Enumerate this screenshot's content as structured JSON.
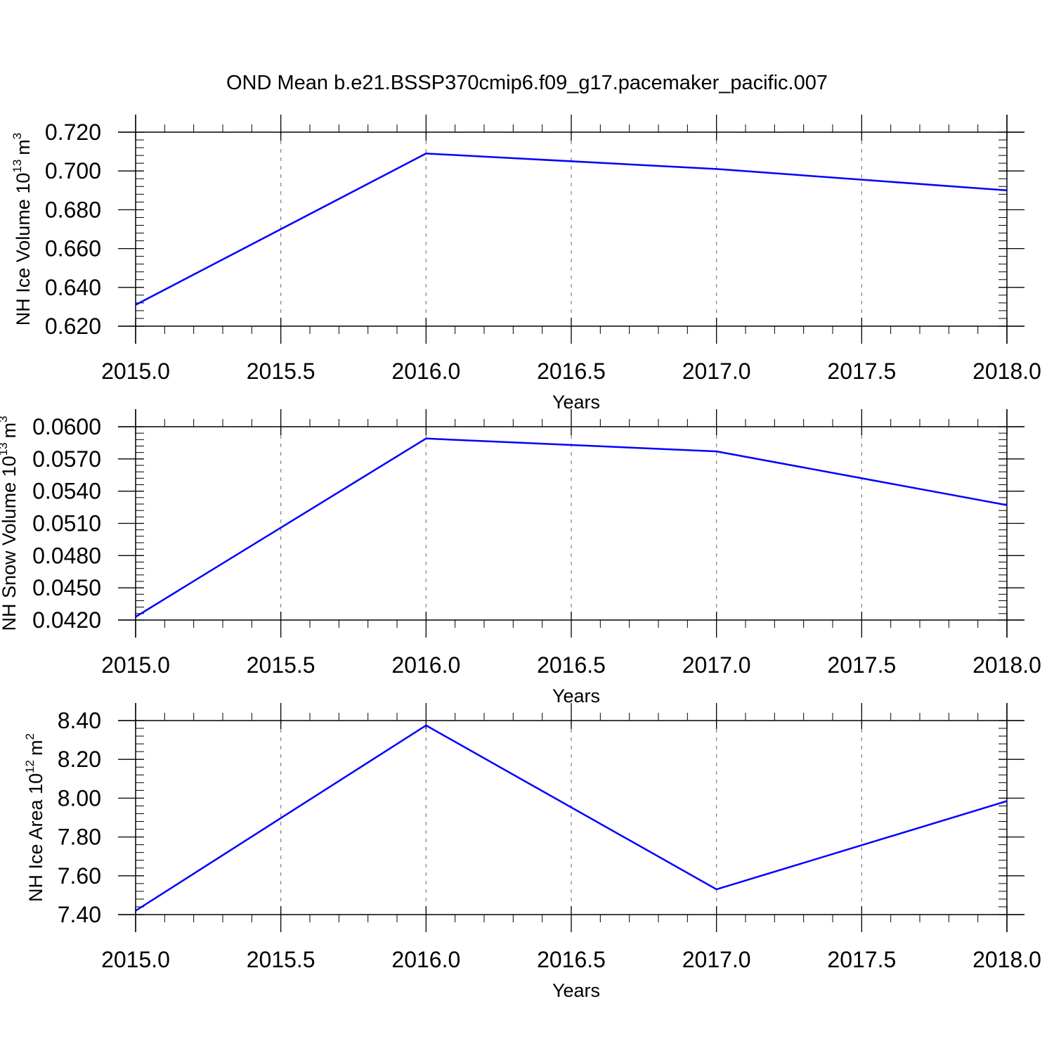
{
  "figure": {
    "title": "OND Mean b.e21.BSSP370cmip6.f09_g17.pacemaker_pacific.007",
    "colors": {
      "series": "#0000ff",
      "axis": "#000000",
      "grid": "#808080",
      "background": "#ffffff"
    }
  },
  "chart_data": [
    {
      "type": "line",
      "ylabel": {
        "text": "NH Ice Volume 10",
        "exp": "13",
        "unit": "m",
        "unit_exp": "3"
      },
      "xlabel": "Years",
      "xlim": [
        2015.0,
        2018.0
      ],
      "ylim": [
        0.62,
        0.72
      ],
      "xticks": [
        2015.0,
        2015.5,
        2016.0,
        2016.5,
        2017.0,
        2017.5,
        2018.0
      ],
      "xtick_labels": [
        "2015.0",
        "2015.5",
        "2016.0",
        "2016.5",
        "2017.0",
        "2017.5",
        "2018.0"
      ],
      "yticks": [
        0.62,
        0.64,
        0.66,
        0.68,
        0.7,
        0.72
      ],
      "ytick_labels": [
        "0.620",
        "0.640",
        "0.660",
        "0.680",
        "0.700",
        "0.720"
      ],
      "x_minor_step": 0.1,
      "y_minor_step": 0.004,
      "vertical_grid": "dashed at major x ticks",
      "series": [
        {
          "x": [
            2015,
            2016,
            2017,
            2018
          ],
          "values": [
            0.631,
            0.709,
            0.701,
            0.69
          ]
        }
      ]
    },
    {
      "type": "line",
      "ylabel": {
        "text": "NH Snow Volume 10",
        "exp": "13",
        "unit": "m",
        "unit_exp": "3"
      },
      "xlabel": "Years",
      "xlim": [
        2015.0,
        2018.0
      ],
      "ylim": [
        0.042,
        0.06
      ],
      "xticks": [
        2015.0,
        2015.5,
        2016.0,
        2016.5,
        2017.0,
        2017.5,
        2018.0
      ],
      "xtick_labels": [
        "2015.0",
        "2015.5",
        "2016.0",
        "2016.5",
        "2017.0",
        "2017.5",
        "2018.0"
      ],
      "yticks": [
        0.042,
        0.045,
        0.048,
        0.051,
        0.054,
        0.057,
        0.06
      ],
      "ytick_labels": [
        "0.0420",
        "0.0450",
        "0.0480",
        "0.0510",
        "0.0540",
        "0.0570",
        "0.0600"
      ],
      "x_minor_step": 0.1,
      "y_minor_step": 0.0006,
      "vertical_grid": "dashed at major x ticks",
      "series": [
        {
          "x": [
            2015,
            2016,
            2017,
            2018
          ],
          "values": [
            0.0423,
            0.0589,
            0.0577,
            0.0527
          ]
        }
      ]
    },
    {
      "type": "line",
      "ylabel": {
        "text": "NH Ice Area 10",
        "exp": "12",
        "unit": "m",
        "unit_exp": "2"
      },
      "xlabel": "Years",
      "xlim": [
        2015.0,
        2018.0
      ],
      "ylim": [
        7.4,
        8.4
      ],
      "xticks": [
        2015.0,
        2015.5,
        2016.0,
        2016.5,
        2017.0,
        2017.5,
        2018.0
      ],
      "xtick_labels": [
        "2015.0",
        "2015.5",
        "2016.0",
        "2016.5",
        "2017.0",
        "2017.5",
        "2018.0"
      ],
      "yticks": [
        7.4,
        7.6,
        7.8,
        8.0,
        8.2,
        8.4
      ],
      "ytick_labels": [
        "7.40",
        "7.60",
        "7.80",
        "8.00",
        "8.20",
        "8.40"
      ],
      "x_minor_step": 0.1,
      "y_minor_step": 0.04,
      "vertical_grid": "dashed at major x ticks",
      "series": [
        {
          "x": [
            2015,
            2016,
            2017,
            2018
          ],
          "values": [
            7.42,
            8.375,
            7.53,
            7.985
          ]
        }
      ]
    }
  ]
}
